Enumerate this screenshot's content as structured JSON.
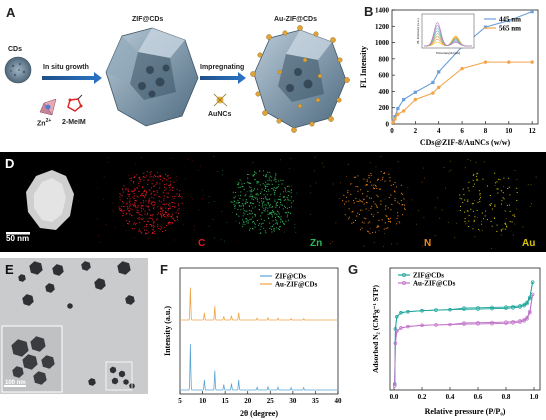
{
  "panels": {
    "a": {
      "letter": "A",
      "cds_label": "CDs",
      "step1_label": "In situ growth",
      "zn_label": "Zn",
      "zn_sup": "2+",
      "mim_label": "2-MeIM",
      "zif_label": "ZIF@CDs",
      "step2_label": "Impregnating",
      "aunc_label": "AuNCs",
      "au_zif_label": "Au-ZIF@CDs"
    },
    "b": {
      "letter": "B",
      "inset_ylabel": "FL Intensity (a.u.)",
      "inset_xlabel": "Wavelength (nm)"
    },
    "d": {
      "letter": "D",
      "scale_label": "50 nm",
      "element_labels": [
        "C",
        "Zn",
        "N",
        "Au"
      ],
      "element_colors": [
        "#e01b24",
        "#2fb85a",
        "#f28a1a",
        "#d6c400"
      ]
    },
    "e": {
      "letter": "E",
      "scale_label": "100 nm"
    },
    "f": {
      "letter": "F"
    },
    "g": {
      "letter": "G"
    }
  },
  "chart_data": [
    {
      "panel": "B",
      "type": "line",
      "xlabel": "CDs@ZIF-8/AuNCs (w/w)",
      "ylabel": "FL Intensity",
      "xlim": [
        0,
        12.5
      ],
      "ylim": [
        0,
        1400
      ],
      "xticks": [
        0,
        2,
        4,
        6,
        8,
        10,
        12
      ],
      "yticks": [
        0,
        200,
        400,
        600,
        800,
        1000,
        1200,
        1400
      ],
      "legend": "top-left",
      "x": [
        0.1,
        0.25,
        0.5,
        1,
        2,
        3.5,
        4,
        6,
        8,
        10,
        12
      ],
      "series": [
        {
          "name": "445 nm",
          "color": "#6a9fd8",
          "values": [
            40,
            90,
            190,
            300,
            390,
            510,
            640,
            950,
            1190,
            1270,
            1380
          ]
        },
        {
          "name": "565 nm",
          "color": "#f2a54a",
          "values": [
            20,
            60,
            120,
            160,
            300,
            380,
            450,
            680,
            760,
            760,
            760
          ]
        }
      ]
    },
    {
      "panel": "F",
      "type": "line",
      "xlabel": "2θ (degree)",
      "ylabel": "Intensity (a.u.)",
      "xlim": [
        5,
        40
      ],
      "xticks": [
        5,
        10,
        15,
        20,
        25,
        30,
        35,
        40
      ],
      "legend": "top-right",
      "peaks": [
        7.3,
        10.4,
        12.7,
        14.7,
        16.4,
        18.0,
        22.1,
        24.5,
        26.7,
        29.6,
        32.4
      ],
      "series": [
        {
          "name": "ZIF@CDs",
          "color": "#5aa5d6",
          "intensities": [
            1.0,
            0.22,
            0.42,
            0.12,
            0.14,
            0.22,
            0.06,
            0.07,
            0.06,
            0.05,
            0.05
          ]
        },
        {
          "name": "Au-ZIF@CDs",
          "color": "#f0a346",
          "intensities": [
            0.9,
            0.2,
            0.38,
            0.1,
            0.12,
            0.2,
            0.05,
            0.06,
            0.05,
            0.04,
            0.04
          ]
        }
      ]
    },
    {
      "panel": "G",
      "type": "line",
      "xlabel": "Relative pressure (P/P₀)",
      "ylabel": "Adsorbed N₂ (CM³g⁻¹ STP)",
      "xlim": [
        0,
        1.0
      ],
      "xticks": [
        0,
        0.2,
        0.4,
        0.6,
        0.8,
        1.0
      ],
      "legend": "top-left",
      "x": [
        0.005,
        0.01,
        0.02,
        0.05,
        0.1,
        0.2,
        0.3,
        0.4,
        0.5,
        0.6,
        0.7,
        0.8,
        0.85,
        0.9,
        0.93,
        0.95,
        0.97,
        0.99
      ],
      "series": [
        {
          "name": "ZIF@CDs",
          "color": "#1aa59a",
          "values": [
            30,
            300,
            360,
            380,
            385,
            390,
            393,
            395,
            397,
            398,
            400,
            402,
            404,
            408,
            415,
            425,
            450,
            530
          ]
        },
        {
          "name": "Au-ZIF@CDs",
          "color": "#c070c8",
          "values": [
            20,
            230,
            290,
            305,
            312,
            318,
            320,
            322,
            324,
            325,
            326,
            328,
            330,
            334,
            340,
            350,
            380,
            470
          ]
        }
      ]
    }
  ]
}
